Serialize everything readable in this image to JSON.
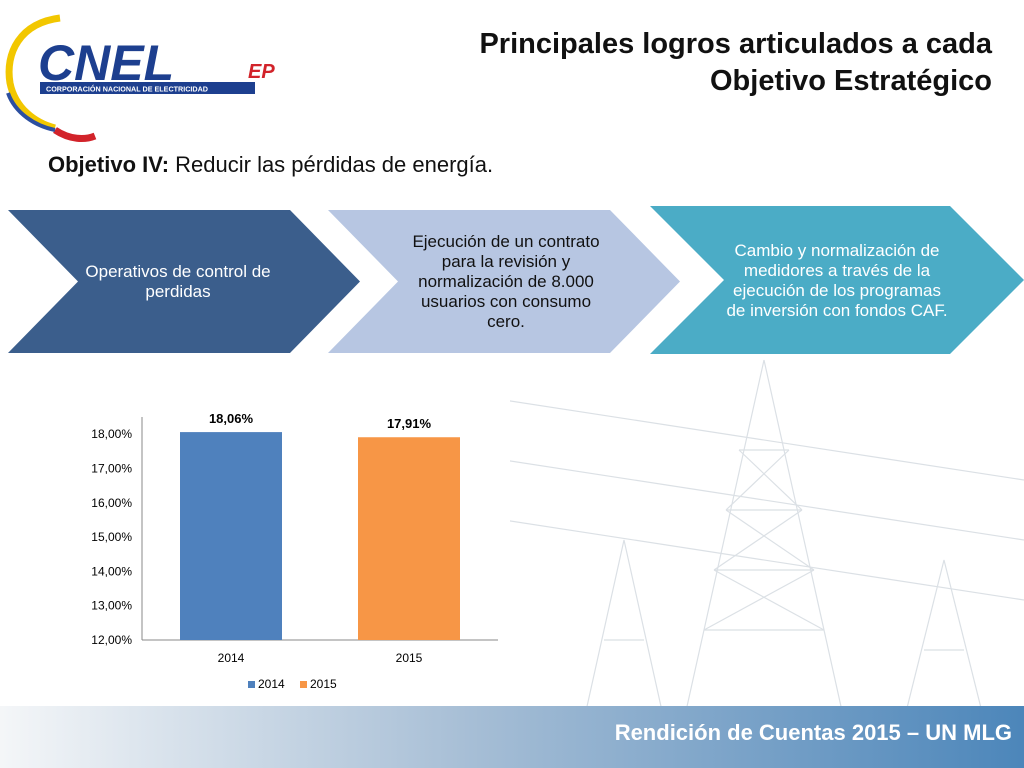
{
  "logo": {
    "brand": "CNEL",
    "suffix": "EP",
    "tagline": "CORPORACIÓN NACIONAL DE ELECTRICIDAD"
  },
  "title_line1": "Principales logros articulados a cada",
  "title_line2": "Objetivo Estratégico",
  "subtitle": {
    "label": "Objetivo IV:",
    "text": " Reducir las pérdidas de energía."
  },
  "chevrons": [
    {
      "text": "Operativos de control de perdidas",
      "color": "#3b5e8c",
      "text_color": "#ffffff"
    },
    {
      "text": "Ejecución de un contrato para la revisión y normalización de 8.000 usuarios con consumo cero.",
      "color": "#b7c6e2",
      "text_color": "#111111"
    },
    {
      "text": "Cambio y normalización de medidores a través de la ejecución de los programas de inversión con fondos CAF.",
      "color": "#4bacc6",
      "text_color": "#ffffff"
    }
  ],
  "chart_data": {
    "type": "bar",
    "categories": [
      "2014",
      "2015"
    ],
    "values": [
      18.06,
      17.91
    ],
    "data_labels": [
      "18,06%",
      "17,91%"
    ],
    "colors": [
      "#4f81bd",
      "#f79646"
    ],
    "y_ticks": [
      "12,00%",
      "13,00%",
      "14,00%",
      "15,00%",
      "16,00%",
      "17,00%",
      "18,00%"
    ],
    "ylim": [
      12,
      18.5
    ],
    "legend": [
      "2014",
      "2015"
    ],
    "legend_position": "bottom"
  },
  "footer": "Rendición de Cuentas 2015 – UN MLG"
}
